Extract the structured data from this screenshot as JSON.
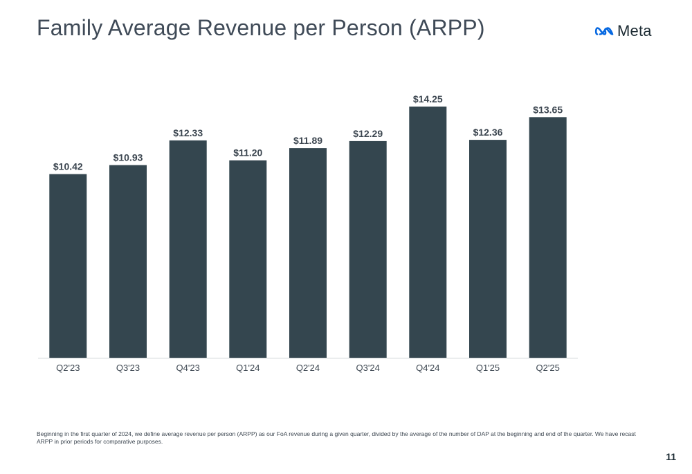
{
  "slide": {
    "title": "Family Average Revenue per Person (ARPP)",
    "logo_text": "Meta",
    "logo_icon": "meta-infinity-icon",
    "footnote": "Beginning in the first quarter of 2024, we define average revenue per person (ARPP) as our FoA revenue during a given quarter, divided by the average of the number of DAP at the beginning and end of the quarter. We have recast ARPP in prior periods for comparative purposes.",
    "page_number": "11"
  },
  "colors": {
    "bar": "#34464f",
    "axis_line": "#cfd3d6",
    "label_text": "#3c4650",
    "title_text": "#3f4a57",
    "logo_blue": "#0668e1"
  },
  "chart_data": {
    "type": "bar",
    "title": "Family Average Revenue per Person (ARPP)",
    "xlabel": "",
    "ylabel": "",
    "categories": [
      "Q2'23",
      "Q3'23",
      "Q4'23",
      "Q1'24",
      "Q2'24",
      "Q3'24",
      "Q4'24",
      "Q1'25",
      "Q2'25"
    ],
    "values": [
      10.42,
      10.93,
      12.33,
      11.2,
      11.89,
      12.29,
      14.25,
      12.36,
      13.65
    ],
    "data_labels": [
      "$10.42",
      "$10.93",
      "$12.33",
      "$11.20",
      "$11.89",
      "$12.29",
      "$14.25",
      "$12.36",
      "$13.65"
    ],
    "ylim": [
      0,
      14.25
    ],
    "grid": false,
    "legend": "none"
  }
}
